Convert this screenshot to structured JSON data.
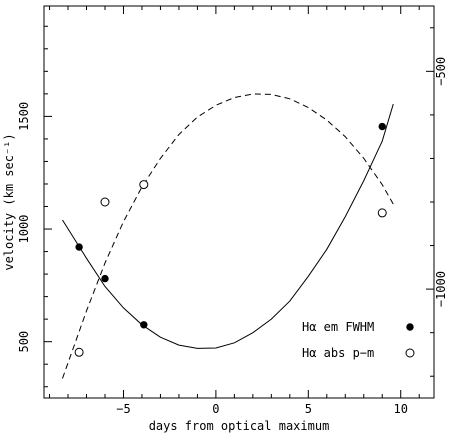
{
  "chart_data": {
    "type": "scatter",
    "xlabel": "days from optical maximum",
    "ylabel": "velocity (km sec⁻¹)",
    "xlim": [
      -9.3,
      11.8
    ],
    "ylim": [
      250,
      1990
    ],
    "xticks": [
      -5,
      0,
      5,
      10
    ],
    "xtick_labels": [
      "−5",
      "0",
      "5",
      "10"
    ],
    "yticks": [
      500,
      1000,
      1500
    ],
    "ytick_labels": [
      "500",
      "1000",
      "1500"
    ],
    "right_axis": {
      "ylim": [
        -1250,
        -350
      ],
      "ticks": [
        -500,
        -1000
      ],
      "tick_labels": [
        "−500",
        "−1000"
      ]
    },
    "series": [
      {
        "name": "Hα em FWHM",
        "axis": "left",
        "marker": "filled-circle",
        "x": [
          -7.4,
          -6.0,
          -3.9,
          9.0
        ],
        "y": [
          920,
          780,
          575,
          1455
        ]
      },
      {
        "name": "Hα abs p−m",
        "axis": "right",
        "marker": "open-circle",
        "x": [
          -7.4,
          -6.0,
          -3.9,
          9.0
        ],
        "y": [
          -1145,
          -800,
          -760,
          -825
        ]
      }
    ],
    "fits": [
      {
        "for": "Hα em FWHM",
        "style": "solid",
        "xrange": [
          -8.3,
          9.6
        ],
        "samples": [
          [
            -8.3,
            1040
          ],
          [
            -7,
            870
          ],
          [
            -6,
            745
          ],
          [
            -5,
            650
          ],
          [
            -4,
            575
          ],
          [
            -3,
            520
          ],
          [
            -2,
            485
          ],
          [
            -1,
            470
          ],
          [
            0,
            472
          ],
          [
            1,
            495
          ],
          [
            2,
            540
          ],
          [
            3,
            600
          ],
          [
            4,
            680
          ],
          [
            5,
            790
          ],
          [
            6,
            910
          ],
          [
            7,
            1055
          ],
          [
            8,
            1215
          ],
          [
            9,
            1390
          ],
          [
            9.6,
            1555
          ]
        ]
      },
      {
        "for": "Hα abs p−m",
        "style": "dashed",
        "axis": "right",
        "xrange": [
          -8.3,
          9.6
        ],
        "samples": [
          [
            -8.3,
            -1205
          ],
          [
            -7,
            -1050
          ],
          [
            -6,
            -940
          ],
          [
            -5,
            -845
          ],
          [
            -4,
            -765
          ],
          [
            -3,
            -700
          ],
          [
            -2,
            -645
          ],
          [
            -1,
            -605
          ],
          [
            0,
            -578
          ],
          [
            1,
            -560
          ],
          [
            2,
            -552
          ],
          [
            3,
            -553
          ],
          [
            4,
            -563
          ],
          [
            5,
            -583
          ],
          [
            6,
            -612
          ],
          [
            7,
            -650
          ],
          [
            8,
            -700
          ],
          [
            9,
            -760
          ],
          [
            9.6,
            -805
          ]
        ]
      }
    ],
    "legend_placement": "bottom-right",
    "grid": false
  }
}
